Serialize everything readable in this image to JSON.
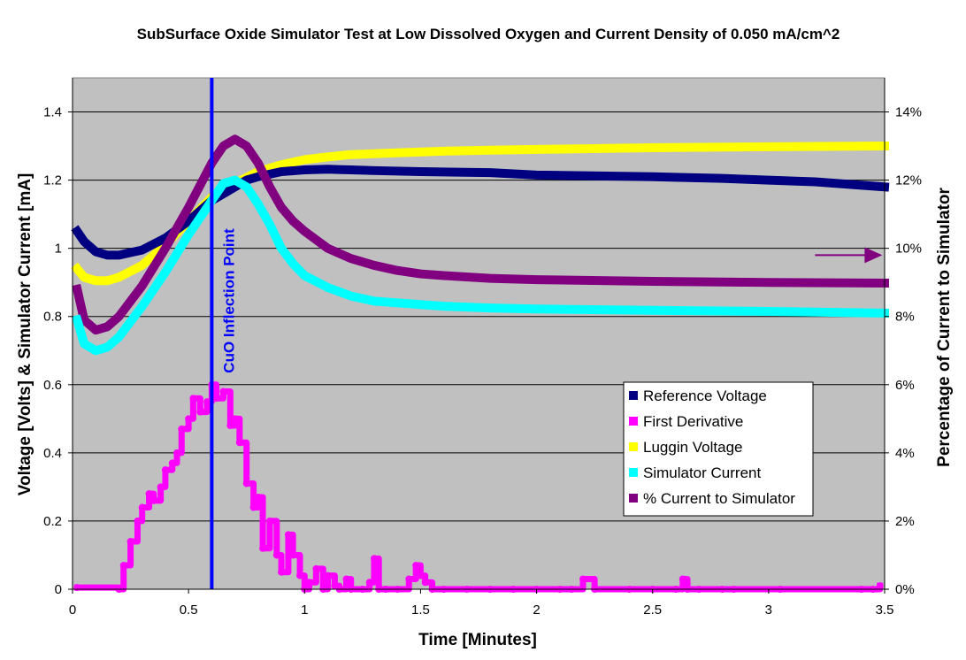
{
  "chart_data": {
    "type": "line",
    "title": "SubSurface Oxide Simulator Test at Low Dissolved Oxygen and Current Density of 0.050 mA/cm^2",
    "xlabel": "Time [Minutes]",
    "ylabel": "Voltage [Volts] & Simulator Current [mA]",
    "y2label": "Percentage of Current to Simulator",
    "xlim": [
      0,
      3.5
    ],
    "ylim": [
      0,
      1.5
    ],
    "y2lim": [
      0,
      15
    ],
    "x_ticks": [
      "0",
      "0.5",
      "1",
      "1.5",
      "2",
      "2.5",
      "3",
      "3.5"
    ],
    "x_tick_values": [
      0,
      0.5,
      1,
      1.5,
      2,
      2.5,
      3,
      3.5
    ],
    "y_ticks": [
      "0",
      "0.2",
      "0.4",
      "0.6",
      "0.8",
      "1",
      "1.2",
      "1.4"
    ],
    "y_tick_values": [
      0,
      0.2,
      0.4,
      0.6,
      0.8,
      1.0,
      1.2,
      1.4
    ],
    "y2_ticks": [
      "0%",
      "2%",
      "4%",
      "6%",
      "8%",
      "10%",
      "12%",
      "14%"
    ],
    "y2_tick_values": [
      0,
      2,
      4,
      6,
      8,
      10,
      12,
      14
    ],
    "grid": true,
    "legend_position": "lower-right",
    "series": [
      {
        "name": "Reference Voltage",
        "color": "#000080",
        "axis": "left",
        "x": [
          0.02,
          0.05,
          0.1,
          0.15,
          0.2,
          0.3,
          0.4,
          0.5,
          0.55,
          0.6,
          0.65,
          0.7,
          0.75,
          0.8,
          0.9,
          1.0,
          1.1,
          1.2,
          1.3,
          1.5,
          1.8,
          2.0,
          2.5,
          2.8,
          3.0,
          3.2,
          3.4,
          3.5
        ],
        "y": [
          1.05,
          1.02,
          0.99,
          0.98,
          0.98,
          0.995,
          1.03,
          1.08,
          1.11,
          1.14,
          1.16,
          1.18,
          1.2,
          1.21,
          1.225,
          1.23,
          1.232,
          1.23,
          1.228,
          1.225,
          1.222,
          1.215,
          1.21,
          1.205,
          1.2,
          1.195,
          1.185,
          1.18
        ]
      },
      {
        "name": "First Derivative",
        "color": "#ff00ff",
        "axis": "left",
        "x": [
          0.02,
          0.2,
          0.22,
          0.25,
          0.28,
          0.3,
          0.33,
          0.35,
          0.38,
          0.4,
          0.43,
          0.45,
          0.47,
          0.5,
          0.52,
          0.55,
          0.58,
          0.6,
          0.62,
          0.65,
          0.68,
          0.7,
          0.72,
          0.75,
          0.78,
          0.8,
          0.82,
          0.85,
          0.88,
          0.9,
          0.93,
          0.95,
          0.98,
          1.0,
          1.02,
          1.05,
          1.08,
          1.1,
          1.13,
          1.15,
          1.18,
          1.2,
          1.25,
          1.28,
          1.3,
          1.32,
          1.35,
          1.4,
          1.45,
          1.48,
          1.5,
          1.52,
          1.55,
          1.6,
          1.7,
          1.8,
          1.9,
          2.0,
          2.1,
          2.15,
          2.2,
          2.25,
          2.4,
          2.5,
          2.6,
          2.63,
          2.65,
          2.7,
          2.8,
          2.85,
          3.05,
          3.4,
          3.45,
          3.48
        ],
        "y": [
          0.005,
          0.0,
          0.07,
          0.14,
          0.2,
          0.24,
          0.28,
          0.26,
          0.3,
          0.35,
          0.37,
          0.4,
          0.47,
          0.5,
          0.56,
          0.52,
          0.55,
          0.6,
          0.56,
          0.58,
          0.48,
          0.5,
          0.43,
          0.31,
          0.24,
          0.27,
          0.12,
          0.2,
          0.1,
          0.05,
          0.16,
          0.1,
          0.04,
          0.0,
          0.02,
          0.06,
          0.0,
          0.04,
          0.01,
          0.0,
          0.03,
          0.0,
          0.0,
          0.02,
          0.09,
          0.0,
          0.0,
          0.0,
          0.03,
          0.07,
          0.04,
          0.02,
          0.0,
          0.0,
          0.0,
          0.0,
          0.0,
          0.0,
          0.0,
          0.0,
          0.03,
          0.0,
          0.0,
          0.0,
          0.0,
          0.03,
          0.0,
          0.0,
          0.0,
          0.0,
          0.0,
          0.0,
          0.0,
          0.01
        ]
      },
      {
        "name": "Luggin Voltage",
        "color": "#ffff00",
        "axis": "left",
        "x": [
          0.02,
          0.05,
          0.1,
          0.15,
          0.2,
          0.3,
          0.4,
          0.5,
          0.6,
          0.7,
          0.8,
          0.9,
          1.0,
          1.1,
          1.2,
          1.4,
          1.6,
          1.8,
          2.0,
          2.5,
          3.0,
          3.5
        ],
        "y": [
          0.94,
          0.915,
          0.905,
          0.905,
          0.915,
          0.95,
          1.01,
          1.08,
          1.15,
          1.19,
          1.225,
          1.245,
          1.26,
          1.268,
          1.275,
          1.28,
          1.285,
          1.288,
          1.29,
          1.295,
          1.298,
          1.3
        ]
      },
      {
        "name": "Simulator  Current",
        "color": "#00ffff",
        "axis": "left",
        "x": [
          0.02,
          0.05,
          0.1,
          0.15,
          0.2,
          0.3,
          0.4,
          0.5,
          0.6,
          0.65,
          0.7,
          0.75,
          0.8,
          0.85,
          0.9,
          0.95,
          1.0,
          1.1,
          1.2,
          1.3,
          1.4,
          1.5,
          1.6,
          1.8,
          2.0,
          2.5,
          3.0,
          3.5
        ],
        "y": [
          0.79,
          0.72,
          0.7,
          0.71,
          0.74,
          0.83,
          0.93,
          1.04,
          1.14,
          1.19,
          1.2,
          1.18,
          1.13,
          1.07,
          1.0,
          0.955,
          0.92,
          0.885,
          0.86,
          0.845,
          0.84,
          0.835,
          0.83,
          0.825,
          0.822,
          0.818,
          0.815,
          0.81
        ]
      },
      {
        "name": "% Current to Simulator",
        "color": "#800080",
        "axis": "right",
        "x": [
          0.02,
          0.05,
          0.1,
          0.15,
          0.2,
          0.3,
          0.4,
          0.5,
          0.6,
          0.65,
          0.7,
          0.75,
          0.8,
          0.85,
          0.9,
          0.95,
          1.0,
          1.1,
          1.2,
          1.3,
          1.4,
          1.5,
          1.6,
          1.8,
          2.0,
          2.5,
          3.0,
          3.5
        ],
        "y": [
          8.8,
          7.9,
          7.6,
          7.7,
          8.0,
          8.9,
          10.0,
          11.2,
          12.5,
          13.0,
          13.2,
          13.0,
          12.5,
          11.8,
          11.2,
          10.8,
          10.5,
          10.0,
          9.7,
          9.5,
          9.35,
          9.25,
          9.2,
          9.12,
          9.08,
          9.03,
          9.0,
          8.98
        ]
      }
    ],
    "annotations": [
      {
        "type": "vline",
        "x": 0.6,
        "color": "#0000ff",
        "label": "CuO Inflection Point"
      },
      {
        "type": "arrow",
        "from_x": 3.2,
        "to_x": 3.49,
        "y2": 9.8,
        "color": "#800080",
        "label": ""
      }
    ]
  }
}
